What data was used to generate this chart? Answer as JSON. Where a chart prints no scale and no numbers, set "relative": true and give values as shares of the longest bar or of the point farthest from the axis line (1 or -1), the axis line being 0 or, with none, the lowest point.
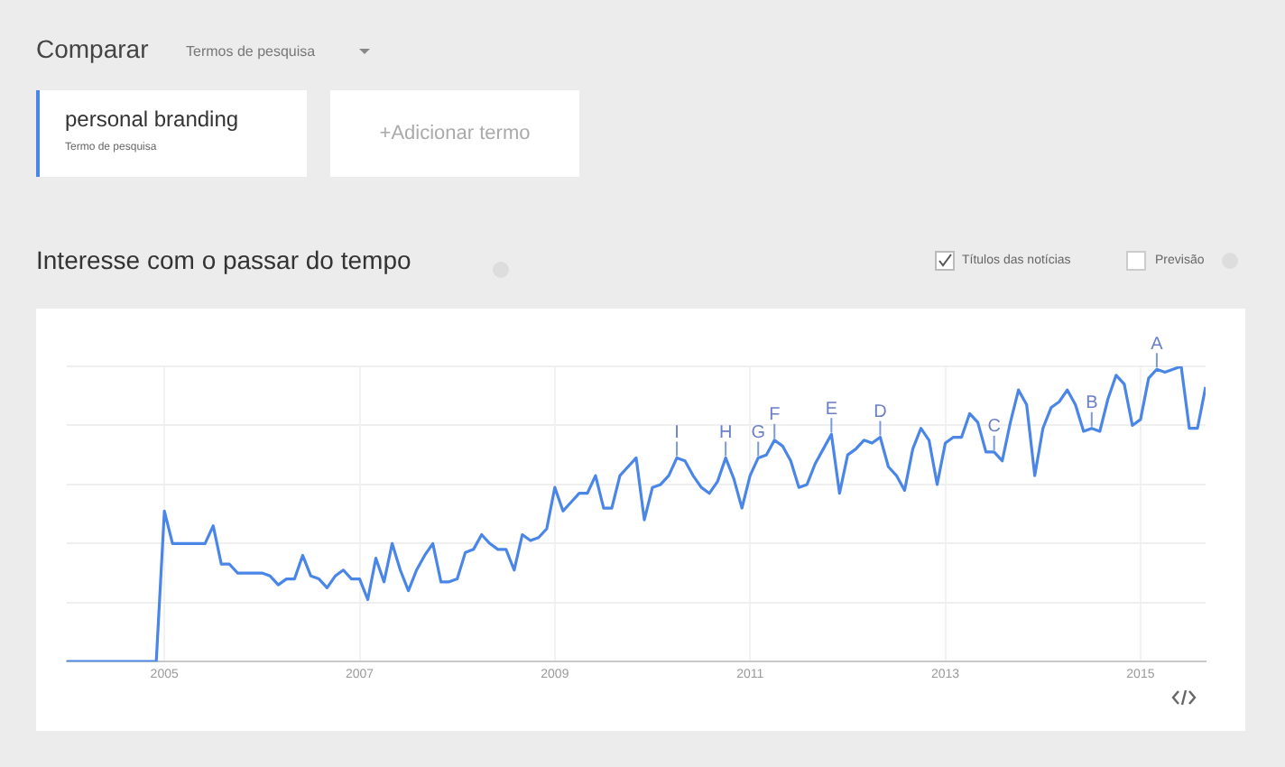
{
  "chart_data": {
    "type": "line",
    "title": "Interesse com o passar do tempo",
    "relative": true,
    "legend": "top left",
    "grid": true,
    "marker": "none",
    "line_style": "solid",
    "xlim": [
      "2004-01",
      "2015-09"
    ],
    "xticks": [
      "2005",
      "2007",
      "2009",
      "2011",
      "2013",
      "2015"
    ],
    "x": [
      "2004-01",
      "2004-02",
      "2004-03",
      "2004-04",
      "2004-05",
      "2004-06",
      "2004-07",
      "2004-08",
      "2004-09",
      "2004-10",
      "2004-11",
      "2004-12",
      "2005-01",
      "2005-02",
      "2005-03",
      "2005-04",
      "2005-05",
      "2005-06",
      "2005-07",
      "2005-08",
      "2005-09",
      "2005-10",
      "2005-11",
      "2005-12",
      "2006-01",
      "2006-02",
      "2006-03",
      "2006-04",
      "2006-05",
      "2006-06",
      "2006-07",
      "2006-08",
      "2006-09",
      "2006-10",
      "2006-11",
      "2006-12",
      "2007-01",
      "2007-02",
      "2007-03",
      "2007-04",
      "2007-05",
      "2007-06",
      "2007-07",
      "2007-08",
      "2007-09",
      "2007-10",
      "2007-11",
      "2007-12",
      "2008-01",
      "2008-02",
      "2008-03",
      "2008-04",
      "2008-05",
      "2008-06",
      "2008-07",
      "2008-08",
      "2008-09",
      "2008-10",
      "2008-11",
      "2008-12",
      "2009-01",
      "2009-02",
      "2009-03",
      "2009-04",
      "2009-05",
      "2009-06",
      "2009-07",
      "2009-08",
      "2009-09",
      "2009-10",
      "2009-11",
      "2009-12",
      "2010-01",
      "2010-02",
      "2010-03",
      "2010-04",
      "2010-05",
      "2010-06",
      "2010-07",
      "2010-08",
      "2010-09",
      "2010-10",
      "2010-11",
      "2010-12",
      "2011-01",
      "2011-02",
      "2011-03",
      "2011-04",
      "2011-05",
      "2011-06",
      "2011-07",
      "2011-08",
      "2011-09",
      "2011-10",
      "2011-11",
      "2011-12",
      "2012-01",
      "2012-02",
      "2012-03",
      "2012-04",
      "2012-05",
      "2012-06",
      "2012-07",
      "2012-08",
      "2012-09",
      "2012-10",
      "2012-11",
      "2012-12",
      "2013-01",
      "2013-02",
      "2013-03",
      "2013-04",
      "2013-05",
      "2013-06",
      "2013-07",
      "2013-08",
      "2013-09",
      "2013-10",
      "2013-11",
      "2013-12",
      "2014-01",
      "2014-02",
      "2014-03",
      "2014-04",
      "2014-05",
      "2014-06",
      "2014-07",
      "2014-08",
      "2014-09",
      "2014-10",
      "2014-11",
      "2014-12",
      "2015-01",
      "2015-02",
      "2015-03",
      "2015-04",
      "2015-05",
      "2015-06",
      "2015-07",
      "2015-08",
      "2015-09"
    ],
    "series": [
      {
        "name": "personal branding",
        "color": "#4a86e8",
        "values": [
          0,
          0,
          0,
          0,
          0,
          0,
          0,
          0,
          0,
          0,
          0,
          0,
          0.51,
          0.4,
          0.4,
          0.4,
          0.4,
          0.4,
          0.46,
          0.33,
          0.33,
          0.3,
          0.3,
          0.3,
          0.3,
          0.29,
          0.26,
          0.28,
          0.28,
          0.36,
          0.29,
          0.28,
          0.25,
          0.29,
          0.31,
          0.28,
          0.28,
          0.21,
          0.35,
          0.27,
          0.4,
          0.31,
          0.24,
          0.31,
          0.36,
          0.4,
          0.27,
          0.27,
          0.28,
          0.37,
          0.38,
          0.43,
          0.4,
          0.38,
          0.38,
          0.31,
          0.43,
          0.41,
          0.42,
          0.45,
          0.59,
          0.51,
          0.54,
          0.57,
          0.57,
          0.63,
          0.52,
          0.52,
          0.63,
          0.66,
          0.69,
          0.48,
          0.59,
          0.6,
          0.63,
          0.69,
          0.68,
          0.63,
          0.59,
          0.57,
          0.61,
          0.69,
          0.62,
          0.52,
          0.63,
          0.69,
          0.7,
          0.75,
          0.73,
          0.68,
          0.59,
          0.6,
          0.67,
          0.72,
          0.77,
          0.57,
          0.7,
          0.72,
          0.75,
          0.74,
          0.76,
          0.66,
          0.63,
          0.58,
          0.72,
          0.79,
          0.75,
          0.6,
          0.74,
          0.76,
          0.76,
          0.84,
          0.81,
          0.71,
          0.71,
          0.68,
          0.81,
          0.92,
          0.87,
          0.63,
          0.79,
          0.86,
          0.88,
          0.92,
          0.87,
          0.78,
          0.79,
          0.78,
          0.89,
          0.97,
          0.94,
          0.8,
          0.82,
          0.96,
          0.99,
          0.98,
          0.99,
          1.0,
          0.79,
          0.79,
          0.93
        ]
      }
    ],
    "annotations": [
      "Comparar",
      "Termos de pesquisa",
      "Termo de pesquisa",
      "+Adicionar termo",
      "Títulos das notícias",
      "Previsão",
      {
        "text": "I",
        "x": "2010-04",
        "y": 0.69
      },
      {
        "text": "H",
        "x": "2010-10",
        "y": 0.69
      },
      {
        "text": "G",
        "x": "2011-02",
        "y": 0.69
      },
      {
        "text": "F",
        "x": "2011-04",
        "y": 0.75
      },
      {
        "text": "E",
        "x": "2011-11",
        "y": 0.77
      },
      {
        "text": "D",
        "x": "2012-05",
        "y": 0.76
      },
      {
        "text": "C",
        "x": "2013-07",
        "y": 0.71
      },
      {
        "text": "B",
        "x": "2014-07",
        "y": 0.79
      },
      {
        "text": "A",
        "x": "2015-03",
        "y": 0.99
      }
    ]
  }
}
